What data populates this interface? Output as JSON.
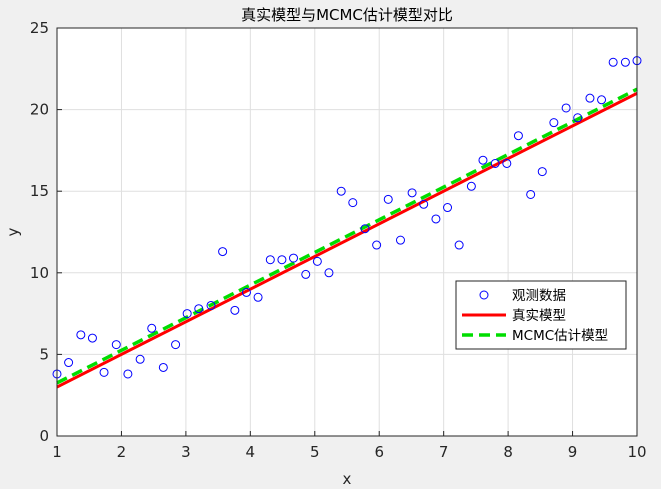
{
  "chart_data": {
    "type": "scatter",
    "title": "真实模型与MCMC估计模型对比",
    "xlabel": "x",
    "ylabel": "y",
    "xlim": [
      1,
      10
    ],
    "ylim": [
      0,
      25
    ],
    "xticks": [
      1,
      2,
      3,
      4,
      5,
      6,
      7,
      8,
      9,
      10
    ],
    "yticks": [
      0,
      5,
      10,
      15,
      20,
      25
    ],
    "grid": true,
    "legend_position": "lower-right",
    "legend": [
      "观测数据",
      "真实模型",
      "MCMC估计模型"
    ],
    "series": [
      {
        "name": "观测数据",
        "kind": "markers",
        "marker": "circle-open",
        "color": "#0000ff",
        "x": [
          1.0,
          1.18,
          1.37,
          1.55,
          1.73,
          1.92,
          2.1,
          2.29,
          2.47,
          2.65,
          2.84,
          3.02,
          3.2,
          3.39,
          3.57,
          3.76,
          3.94,
          4.12,
          4.31,
          4.49,
          4.67,
          4.86,
          5.04,
          5.22,
          5.41,
          5.59,
          5.78,
          5.96,
          6.14,
          6.33,
          6.51,
          6.69,
          6.88,
          7.06,
          7.24,
          7.43,
          7.61,
          7.8,
          7.98,
          8.16,
          8.35,
          8.53,
          8.71,
          8.9,
          9.08,
          9.27,
          9.45,
          9.63,
          9.82,
          10.0
        ],
        "y": [
          3.8,
          4.5,
          6.2,
          6.0,
          3.9,
          5.6,
          3.8,
          4.7,
          6.6,
          4.2,
          5.6,
          7.5,
          7.8,
          8.0,
          11.3,
          7.7,
          8.8,
          8.5,
          10.8,
          10.8,
          10.9,
          9.9,
          10.7,
          10.0,
          15.0,
          14.3,
          12.7,
          11.7,
          14.5,
          12.0,
          14.9,
          14.2,
          13.3,
          14.0,
          11.7,
          15.3,
          16.9,
          16.7,
          16.7,
          18.4,
          14.8,
          16.2,
          19.2,
          20.1,
          19.5,
          20.7,
          20.6,
          22.9,
          22.9,
          23.0
        ]
      },
      {
        "name": "真实模型",
        "kind": "line",
        "color": "#ff0000",
        "x": [
          1,
          10
        ],
        "y": [
          3.0,
          21.0
        ]
      },
      {
        "name": "MCMC估计模型",
        "kind": "dashed-line",
        "color": "#00dd00",
        "x": [
          1,
          10
        ],
        "y": [
          3.25,
          21.25
        ]
      }
    ]
  }
}
